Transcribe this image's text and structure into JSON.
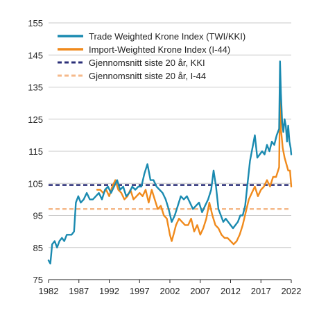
{
  "chart_data": {
    "type": "line",
    "title": "",
    "xlabel": "",
    "ylabel": "",
    "xlim": [
      1982,
      2022
    ],
    "ylim": [
      75,
      155
    ],
    "xticks": [
      1982,
      1987,
      1992,
      1997,
      2002,
      2007,
      2012,
      2017,
      2022
    ],
    "yticks": [
      75,
      85,
      95,
      105,
      115,
      125,
      135,
      145,
      155
    ],
    "grid": true,
    "legend_position": "top-left",
    "series": [
      {
        "name": "Trade Weighted Krone Index (TWI/KKI)",
        "color": "#1a8ab0",
        "style": "solid",
        "x": [
          1982.0,
          1982.3,
          1982.6,
          1983.0,
          1983.4,
          1983.8,
          1984.2,
          1984.6,
          1985.0,
          1985.4,
          1985.8,
          1986.2,
          1986.5,
          1986.9,
          1987.3,
          1987.8,
          1988.3,
          1988.8,
          1989.3,
          1989.8,
          1990.3,
          1990.8,
          1991.3,
          1991.8,
          1992.3,
          1992.8,
          1993.3,
          1993.8,
          1994.3,
          1994.8,
          1995.3,
          1995.8,
          1996.3,
          1996.8,
          1997.3,
          1997.8,
          1998.3,
          1998.8,
          1999.3,
          1999.8,
          2000.3,
          2000.8,
          2001.3,
          2001.8,
          2002.3,
          2002.8,
          2003.3,
          2003.8,
          2004.3,
          2004.8,
          2005.3,
          2005.8,
          2006.3,
          2006.8,
          2007.3,
          2007.8,
          2008.3,
          2008.8,
          2009.2,
          2009.6,
          2010.0,
          2010.4,
          2010.8,
          2011.2,
          2011.6,
          2012.0,
          2012.4,
          2012.8,
          2013.2,
          2013.6,
          2014.0,
          2014.4,
          2014.8,
          2015.2,
          2015.6,
          2016.0,
          2016.4,
          2016.8,
          2017.2,
          2017.6,
          2018.0,
          2018.4,
          2018.8,
          2019.2,
          2019.6,
          2020.0,
          2020.15,
          2020.3,
          2020.5,
          2020.7,
          2020.9,
          2021.1,
          2021.3,
          2021.5,
          2021.7,
          2021.9,
          2022.0
        ],
        "values": [
          81,
          80,
          86,
          87,
          85,
          87,
          88,
          87,
          89,
          89,
          89,
          90,
          99,
          101,
          99,
          100,
          102,
          100,
          100,
          101,
          102,
          100,
          103,
          104,
          102,
          104,
          106,
          103,
          104,
          101,
          102,
          104,
          103,
          104,
          104,
          108,
          111,
          106,
          106,
          104,
          103,
          102,
          100,
          97,
          93,
          95,
          98,
          101,
          100,
          101,
          99,
          97,
          98,
          99,
          96,
          98,
          100,
          103,
          109,
          104,
          97,
          95,
          93,
          94,
          93,
          92,
          91,
          92,
          93,
          95,
          95,
          98,
          105,
          112,
          116,
          120,
          113,
          114,
          115,
          114,
          117,
          115,
          118,
          117,
          120,
          122,
          143,
          133,
          124,
          121,
          125,
          123,
          118,
          123,
          118,
          116,
          114
        ]
      },
      {
        "name": "Import-Weighted Krone Index (I-44)",
        "color": "#f08a1c",
        "style": "solid",
        "x": [
          1990.0,
          1990.5,
          1991.0,
          1991.5,
          1992.0,
          1992.5,
          1993.0,
          1993.5,
          1994.0,
          1994.5,
          1995.0,
          1995.5,
          1996.0,
          1996.5,
          1997.0,
          1997.5,
          1998.0,
          1998.5,
          1999.0,
          1999.5,
          2000.0,
          2000.5,
          2001.0,
          2001.5,
          2002.0,
          2002.3,
          2002.6,
          2003.0,
          2003.5,
          2004.0,
          2004.5,
          2005.0,
          2005.5,
          2006.0,
          2006.5,
          2007.0,
          2007.5,
          2008.0,
          2008.5,
          2009.0,
          2009.5,
          2010.0,
          2010.5,
          2011.0,
          2011.5,
          2012.0,
          2012.5,
          2013.0,
          2013.5,
          2014.0,
          2014.5,
          2015.0,
          2015.5,
          2016.0,
          2016.5,
          2017.0,
          2017.5,
          2018.0,
          2018.5,
          2019.0,
          2019.5,
          2020.0,
          2020.15,
          2020.3,
          2020.6,
          2020.9,
          2021.2,
          2021.5,
          2021.8,
          2022.0
        ],
        "values": [
          103,
          103,
          102,
          103,
          101,
          104,
          106,
          103,
          102,
          100,
          101,
          103,
          100,
          101,
          102,
          101,
          103,
          99,
          103,
          100,
          97,
          98,
          95,
          94,
          89,
          87,
          89,
          92,
          94,
          93,
          92,
          92,
          94,
          90,
          92,
          89,
          91,
          94,
          99,
          95,
          92,
          91,
          89,
          88,
          88,
          87,
          86,
          87,
          89,
          92,
          96,
          100,
          102,
          104,
          101,
          103,
          104,
          106,
          104,
          107,
          107,
          110,
          131,
          122,
          116,
          113,
          111,
          109,
          109,
          104
        ]
      },
      {
        "name": "Gjennomsnitt siste 20 år, KKI",
        "color": "#2b2f78",
        "style": "dashed",
        "x": [
          1982,
          2022
        ],
        "values": [
          104.5,
          104.5
        ]
      },
      {
        "name": "Gjennomsnitt siste 20 år, I-44",
        "color": "#f5b98a",
        "style": "dashed",
        "x": [
          1982,
          2022
        ],
        "values": [
          97,
          97
        ]
      }
    ]
  }
}
